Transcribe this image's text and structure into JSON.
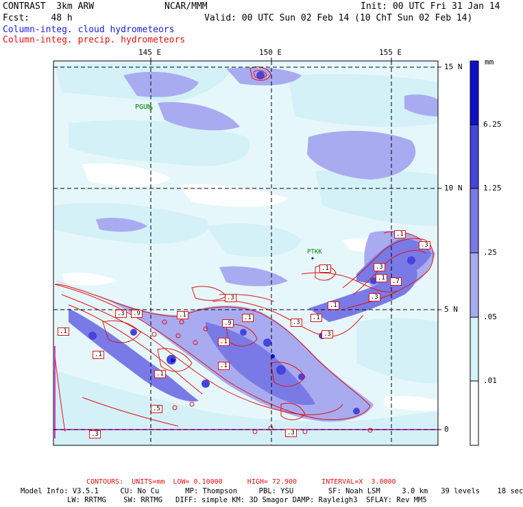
{
  "header": {
    "model": "CONTRAST  3km ARW",
    "org": "NCAR/MMM",
    "init": "Init: 00 UTC Fri 31 Jan 14",
    "fcst_label": "Fcst:    48 h",
    "valid": "Valid: 00 UTC Sun 02 Feb 14 (10 ChT Sun 02 Feb 14)",
    "field1": "Column-integ. cloud hydrometeors",
    "field2": "Column-integ. precip. hydrometeors"
  },
  "map": {
    "lon_ticks": [
      "145 E",
      "150 E",
      "155 E"
    ],
    "lat_ticks": [
      "15 N",
      "10 N",
      "5 N",
      "0"
    ],
    "stations": [
      "PGUM",
      "PTKK"
    ],
    "contour_labels": [
      ".1",
      ".3",
      ".9",
      ".1",
      ".1",
      ".5",
      ".3",
      ".1",
      ".1",
      ".9",
      ".1",
      ".3",
      ".3",
      ".1",
      ".3",
      ".1",
      ".3",
      ".1",
      ".1",
      ".3",
      ".7",
      ".3",
      ".1",
      ".3",
      ".1"
    ]
  },
  "colorbar": {
    "unit": "mm",
    "levels": [
      "6.25",
      "1.25",
      ".25",
      ".05",
      ".01"
    ],
    "colors": [
      "#1010c8",
      "#4545dc",
      "#7a7ae6",
      "#a9abf0",
      "#d5f2f8",
      "#ffffff"
    ]
  },
  "footer": {
    "contours": "CONTOURS:  UNITS=mm  LOW= 0.10000      HIGH= 72.900      INTERVAL=X  3.0000",
    "info1": "Model Info: V3.5.1     CU: No Cu      MP: Thompson     PBL: YSU        SF: Noah LSM     3.0 km   39 levels    18 sec",
    "info2": "LW: RRTMG    SW: RRTMG   DIFF: simple KM: 3D Smagor DAMP: Rayleigh3  SFLAY: Rev MM5"
  }
}
